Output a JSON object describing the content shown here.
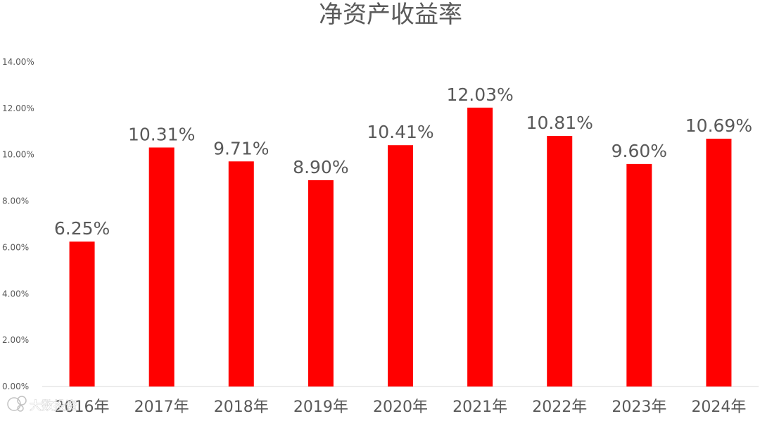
{
  "chart_data": {
    "type": "bar",
    "title": "净资产收益率",
    "xlabel": "",
    "ylabel": "",
    "categories": [
      "2016年",
      "2017年",
      "2018年",
      "2019年",
      "2020年",
      "2021年",
      "2022年",
      "2023年",
      "2024年"
    ],
    "values": [
      6.25,
      10.31,
      9.71,
      8.9,
      10.41,
      12.03,
      10.81,
      9.6,
      10.69
    ],
    "data_labels": [
      "6.25%",
      "10.31%",
      "9.71%",
      "8.90%",
      "10.41%",
      "12.03%",
      "10.81%",
      "9.60%",
      "10.69%"
    ],
    "ylim": [
      0,
      14
    ],
    "yticks": [
      "0.00%",
      "2.00%",
      "4.00%",
      "6.00%",
      "8.00%",
      "10.00%",
      "12.00%",
      "14.00%"
    ],
    "ytick_values": [
      0,
      2,
      4,
      6,
      8,
      10,
      12,
      14
    ],
    "grid": false,
    "legend": "none",
    "bar_color": "#ff0000",
    "text_color": "#595959"
  },
  "watermark": {
    "text": "大数投资"
  }
}
